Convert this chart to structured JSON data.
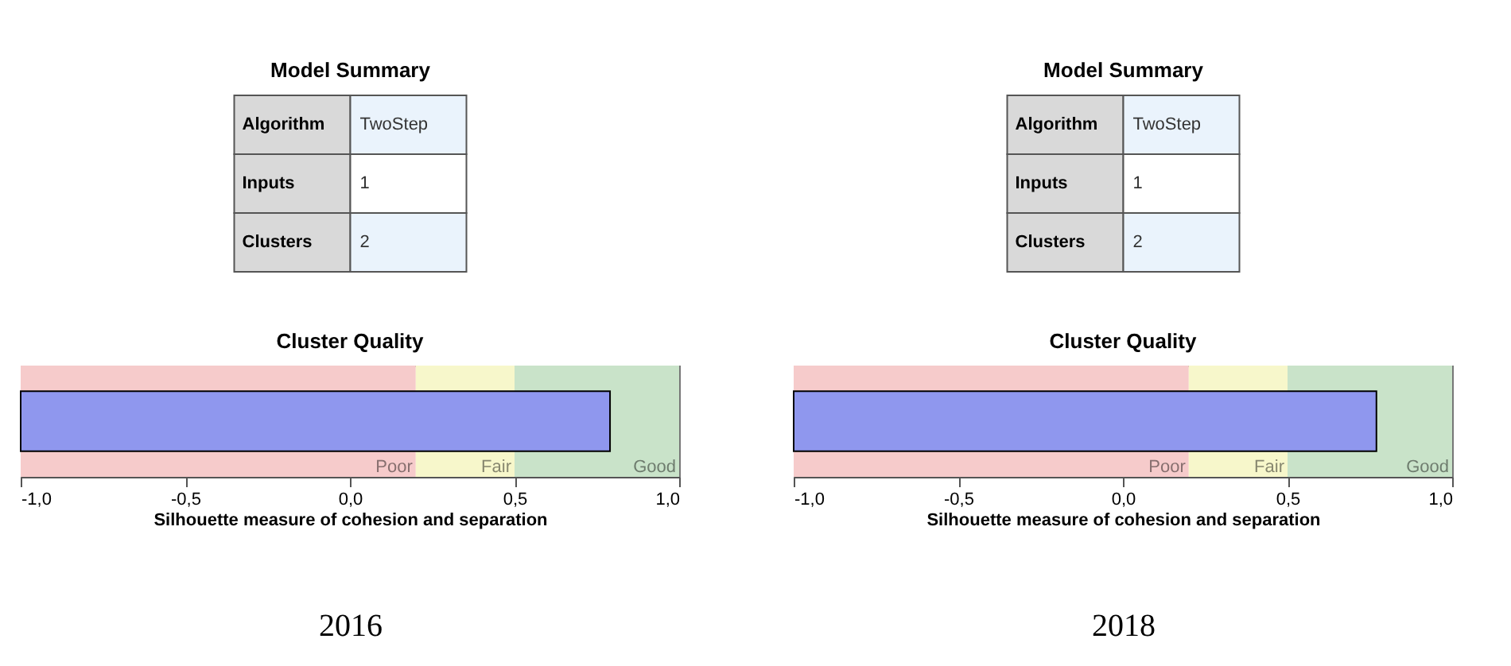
{
  "chart_data": [
    {
      "type": "other",
      "title": "Model Summary",
      "y_categories": [
        "Algorithm",
        "Inputs",
        "Clusters"
      ],
      "cell_labels": [
        [
          "TwoStep"
        ],
        [
          "1"
        ],
        [
          "2"
        ]
      ]
    },
    {
      "type": "bar",
      "title": "Cluster Quality",
      "orientation": "horizontal",
      "categories": [
        null
      ],
      "base": [
        -1
      ],
      "values": [
        1.79
      ],
      "color": "#8f97ee",
      "xlim": [
        -1,
        1
      ],
      "xticks": [
        {
          "value": -1,
          "label": "-1,0"
        },
        {
          "value": -0.5,
          "label": "-0,5"
        },
        {
          "value": 0,
          "label": "0,0"
        },
        {
          "value": 0.5,
          "label": "0,5"
        },
        {
          "value": 1,
          "label": "1,0"
        }
      ],
      "xlabel": "Silhouette measure of cohesion and separation",
      "tick_labels": "x",
      "grid": false,
      "legend": false,
      "bands": [
        {
          "axis": "x",
          "from": -1,
          "to": 0.2,
          "label": "Poor",
          "color": "#f6cbcb"
        },
        {
          "axis": "x",
          "from": 0.2,
          "to": 0.5,
          "label": "Fair",
          "color": "#f7f7cb"
        },
        {
          "axis": "x",
          "from": 0.5,
          "to": 1,
          "label": "Good",
          "color": "#c9e3c9"
        }
      ],
      "annotations": [
        "2016"
      ]
    },
    {
      "type": "other",
      "title": "Model Summary",
      "y_categories": [
        "Algorithm",
        "Inputs",
        "Clusters"
      ],
      "cell_labels": [
        [
          "TwoStep"
        ],
        [
          "1"
        ],
        [
          "2"
        ]
      ]
    },
    {
      "type": "bar",
      "title": "Cluster Quality",
      "orientation": "horizontal",
      "categories": [
        null
      ],
      "base": [
        -1
      ],
      "values": [
        1.77
      ],
      "color": "#8f97ee",
      "xlim": [
        -1,
        1
      ],
      "xticks": [
        {
          "value": -1,
          "label": "-1,0"
        },
        {
          "value": -0.5,
          "label": "-0,5"
        },
        {
          "value": 0,
          "label": "0,0"
        },
        {
          "value": 0.5,
          "label": "0,5"
        },
        {
          "value": 1,
          "label": "1,0"
        }
      ],
      "xlabel": "Silhouette measure of cohesion and separation",
      "tick_labels": "x",
      "grid": false,
      "legend": false,
      "bands": [
        {
          "axis": "x",
          "from": -1,
          "to": 0.2,
          "label": "Poor",
          "color": "#f6cbcb"
        },
        {
          "axis": "x",
          "from": 0.2,
          "to": 0.5,
          "label": "Fair",
          "color": "#f7f7cb"
        },
        {
          "axis": "x",
          "from": 0.5,
          "to": 1,
          "label": "Good",
          "color": "#c9e3c9"
        }
      ],
      "annotations": [
        "2018"
      ]
    }
  ]
}
